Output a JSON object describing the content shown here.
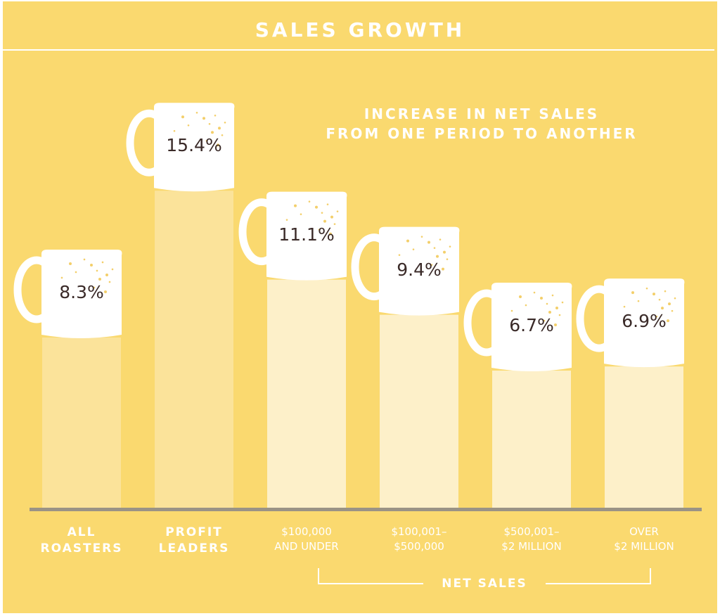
{
  "title": "SALES GROWTH",
  "subtitle_lines": [
    "INCREASE IN NET SALES",
    "FROM ONE PERIOD TO ANOTHER"
  ],
  "group_label": "NET SALES",
  "colors": {
    "background": "#fad96f",
    "bar_primary": "#fbe39a",
    "bar_secondary": "#fdf0c9",
    "mug": "#ffffff",
    "baseline": "#9a9385",
    "value_text": "#3a2a28",
    "label_text": "#ffffff"
  },
  "icons": [
    "coffee-mug-icon"
  ],
  "chart_data": {
    "type": "bar",
    "title": "SALES GROWTH",
    "subtitle": "INCREASE IN NET SALES FROM ONE PERIOD TO ANOTHER",
    "categories": [
      {
        "lines": [
          "ALL",
          "ROASTERS"
        ]
      },
      {
        "lines": [
          "PROFIT",
          "LEADERS"
        ]
      },
      {
        "lines": [
          "$100,000",
          "AND UNDER"
        ]
      },
      {
        "lines": [
          "$100,001–",
          "$500,000"
        ]
      },
      {
        "lines": [
          "$500,001–",
          "$2 MILLION"
        ]
      },
      {
        "lines": [
          "OVER",
          "$2 MILLION"
        ]
      }
    ],
    "values": [
      8.3,
      15.4,
      11.1,
      9.4,
      6.7,
      6.9
    ],
    "value_labels": [
      "8.3%",
      "15.4%",
      "11.1%",
      "9.4%",
      "6.7%",
      "6.9%"
    ],
    "ylim": [
      0,
      16
    ],
    "grouping": {
      "label": "NET SALES",
      "categories": [
        2,
        3,
        4,
        5
      ]
    },
    "grid": false,
    "legend": "none"
  }
}
